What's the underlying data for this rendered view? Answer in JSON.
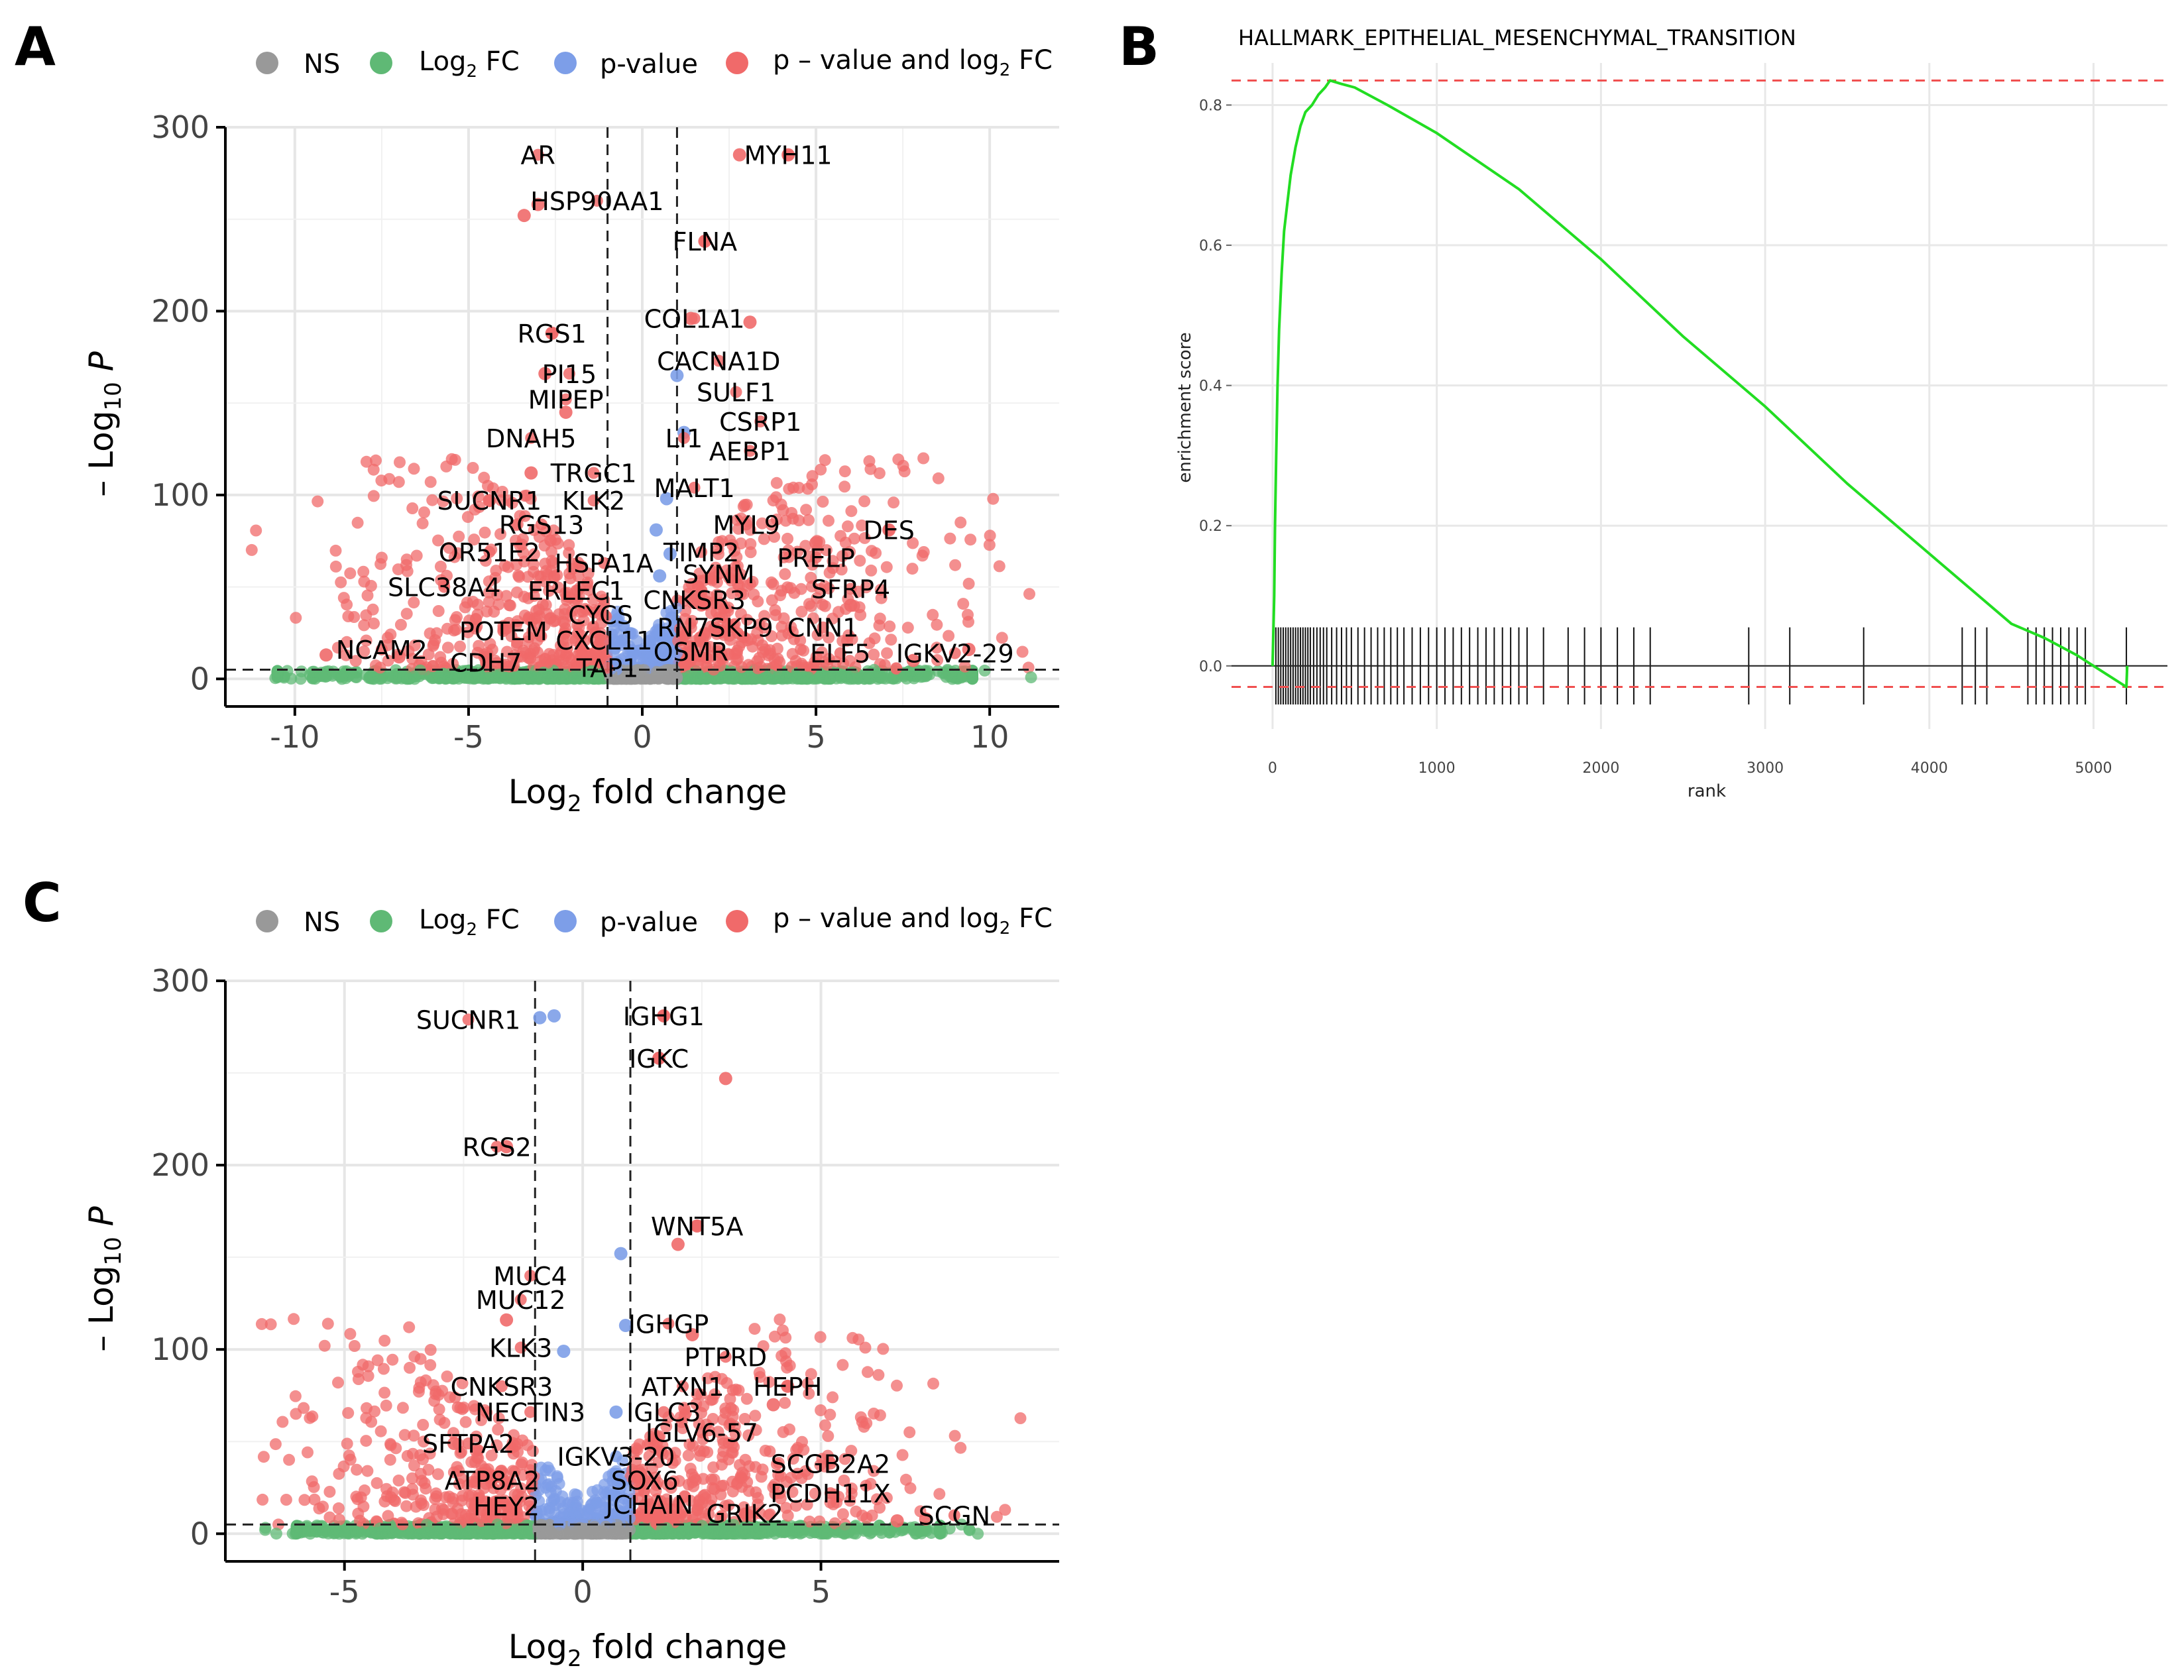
{
  "panels": {
    "a": "A",
    "b": "B",
    "c": "C"
  },
  "legend": {
    "ns": "NS",
    "log2fc_base": "Log",
    "log2fc_sub": "2",
    "log2fc_tail": " FC",
    "pvalue": "p-value",
    "both_base": "p – value and log",
    "both_sub": "2",
    "both_tail": " FC",
    "colors": {
      "ns": "#999999",
      "log2fc": "#5fb975",
      "pvalue": "#7d9ee8",
      "both": "#f06a6a"
    }
  },
  "chart_data": [
    {
      "id": "A",
      "type": "scatter",
      "title": "",
      "xlabel_base": "Log",
      "xlabel_sub": "2",
      "xlabel_tail": " fold change",
      "ylabel_base": "– Log",
      "ylabel_sub": "10",
      "ylabel_tail": " P",
      "xlim": [
        -12,
        12
      ],
      "ylim": [
        -15,
        300
      ],
      "xticks": [
        -10,
        -5,
        0,
        5,
        10
      ],
      "xtick_labels": [
        "-10",
        "-5",
        "0",
        "5",
        "10"
      ],
      "yticks": [
        0,
        100,
        200,
        300
      ],
      "ytick_labels": [
        "0",
        "100",
        "200",
        "300"
      ],
      "fc_cutoff": 1,
      "p_cutoff": 5,
      "labels": [
        {
          "gene": "AR",
          "x": -3.0,
          "y": 285
        },
        {
          "gene": "MYH11",
          "x": 4.2,
          "y": 285
        },
        {
          "gene": "HSP90AA1",
          "x": -1.3,
          "y": 260
        },
        {
          "gene": "FLNA",
          "x": 1.8,
          "y": 238
        },
        {
          "gene": "COL1A1",
          "x": 1.5,
          "y": 196
        },
        {
          "gene": "RGS1",
          "x": -2.6,
          "y": 188
        },
        {
          "gene": "CACNA1D",
          "x": 2.2,
          "y": 173
        },
        {
          "gene": "PI15",
          "x": -2.1,
          "y": 166
        },
        {
          "gene": "SULF1",
          "x": 2.7,
          "y": 156
        },
        {
          "gene": "MIPEP",
          "x": -2.2,
          "y": 152
        },
        {
          "gene": "CSRP1",
          "x": 3.4,
          "y": 140
        },
        {
          "gene": "DNAH5",
          "x": -3.2,
          "y": 131
        },
        {
          "gene": "LI1",
          "x": 1.2,
          "y": 131
        },
        {
          "gene": "AEBP1",
          "x": 3.1,
          "y": 124
        },
        {
          "gene": "TRGC1",
          "x": -1.4,
          "y": 112
        },
        {
          "gene": "MALT1",
          "x": 1.5,
          "y": 104
        },
        {
          "gene": "SUCNR1",
          "x": -4.4,
          "y": 97
        },
        {
          "gene": "KLK2",
          "x": -1.4,
          "y": 97
        },
        {
          "gene": "RGS13",
          "x": -2.9,
          "y": 84
        },
        {
          "gene": "MYL9",
          "x": 3.0,
          "y": 84
        },
        {
          "gene": "DES",
          "x": 7.1,
          "y": 81
        },
        {
          "gene": "OR51E2",
          "x": -4.4,
          "y": 69
        },
        {
          "gene": "TIMP2",
          "x": 1.7,
          "y": 69
        },
        {
          "gene": "PRELP",
          "x": 5.0,
          "y": 66
        },
        {
          "gene": "HSPA1A",
          "x": -1.1,
          "y": 63
        },
        {
          "gene": "SYNM",
          "x": 2.2,
          "y": 57
        },
        {
          "gene": "SLC38A4",
          "x": -5.7,
          "y": 50
        },
        {
          "gene": "SFRP4",
          "x": 6.0,
          "y": 49
        },
        {
          "gene": "ERLEC1",
          "x": -1.9,
          "y": 48
        },
        {
          "gene": "CNKSR3",
          "x": 1.5,
          "y": 43
        },
        {
          "gene": "CYCS",
          "x": -1.2,
          "y": 35
        },
        {
          "gene": "POTEM",
          "x": -4.0,
          "y": 26
        },
        {
          "gene": "RN7SKP9",
          "x": 2.1,
          "y": 28
        },
        {
          "gene": "CNN1",
          "x": 5.2,
          "y": 28
        },
        {
          "gene": "CXCL11",
          "x": -1.1,
          "y": 21
        },
        {
          "gene": "NCAM2",
          "x": -7.5,
          "y": 16
        },
        {
          "gene": "OSMR",
          "x": 1.4,
          "y": 15
        },
        {
          "gene": "ELF5",
          "x": 5.7,
          "y": 14
        },
        {
          "gene": "IGKV2-29",
          "x": 9.0,
          "y": 14
        },
        {
          "gene": "CDH7",
          "x": -4.5,
          "y": 9
        },
        {
          "gene": "TAP1",
          "x": -1.0,
          "y": 6
        }
      ],
      "highlight_points": [
        {
          "x": -3.4,
          "y": 252,
          "c": "both"
        },
        {
          "x": -3.0,
          "y": 258,
          "c": "both"
        },
        {
          "x": 2.8,
          "y": 285,
          "c": "both"
        },
        {
          "x": 4.2,
          "y": 285,
          "c": "both"
        },
        {
          "x": 1.8,
          "y": 238,
          "c": "both"
        },
        {
          "x": 1.4,
          "y": 196,
          "c": "both"
        },
        {
          "x": 3.1,
          "y": 194,
          "c": "both"
        },
        {
          "x": 1.0,
          "y": 165,
          "c": "pvalue"
        },
        {
          "x": 1.2,
          "y": 134,
          "c": "pvalue"
        },
        {
          "x": 0.4,
          "y": 81,
          "c": "pvalue"
        },
        {
          "x": 0.7,
          "y": 98,
          "c": "pvalue"
        },
        {
          "x": 0.8,
          "y": 68,
          "c": "pvalue"
        },
        {
          "x": 0.5,
          "y": 56,
          "c": "pvalue"
        },
        {
          "x": -2.6,
          "y": 188,
          "c": "both"
        },
        {
          "x": -2.8,
          "y": 166,
          "c": "both"
        },
        {
          "x": -2.2,
          "y": 145,
          "c": "both"
        },
        {
          "x": -3.2,
          "y": 112,
          "c": "both"
        },
        {
          "x": -4.4,
          "y": 97,
          "c": "both"
        },
        {
          "x": 7.1,
          "y": 81,
          "c": "both"
        },
        {
          "x": 5.0,
          "y": 74,
          "c": "both"
        },
        {
          "x": 6.0,
          "y": 40,
          "c": "both"
        },
        {
          "x": -9.1,
          "y": 13,
          "c": "both"
        },
        {
          "x": -7.0,
          "y": 12,
          "c": "both"
        },
        {
          "x": 9.4,
          "y": 16,
          "c": "both"
        },
        {
          "x": 7.8,
          "y": 10,
          "c": "both"
        }
      ]
    },
    {
      "id": "C",
      "type": "scatter",
      "title": "",
      "xlabel_base": "Log",
      "xlabel_sub": "2",
      "xlabel_tail": " fold change",
      "ylabel_base": "– Log",
      "ylabel_sub": "10",
      "ylabel_tail": " P",
      "xlim": [
        -7.5,
        10
      ],
      "ylim": [
        -15,
        300
      ],
      "xticks": [
        -5,
        0,
        5
      ],
      "xtick_labels": [
        "-5",
        "0",
        "5"
      ],
      "yticks": [
        0,
        100,
        200,
        300
      ],
      "ytick_labels": [
        "0",
        "100",
        "200",
        "300"
      ],
      "fc_cutoff": 1,
      "p_cutoff": 5,
      "labels": [
        {
          "gene": "SUCNR1",
          "x": -2.4,
          "y": 279
        },
        {
          "gene": "IGHG1",
          "x": 1.7,
          "y": 281
        },
        {
          "gene": "IGKC",
          "x": 1.6,
          "y": 258
        },
        {
          "gene": "RGS2",
          "x": -1.8,
          "y": 210
        },
        {
          "gene": "WNT5A",
          "x": 2.4,
          "y": 167
        },
        {
          "gene": "MUC4",
          "x": -1.1,
          "y": 140
        },
        {
          "gene": "MUC12",
          "x": -1.3,
          "y": 127
        },
        {
          "gene": "IGHGP",
          "x": 1.8,
          "y": 114
        },
        {
          "gene": "KLK3",
          "x": -1.3,
          "y": 101
        },
        {
          "gene": "PTPRD",
          "x": 3.0,
          "y": 96
        },
        {
          "gene": "CNKSR3",
          "x": -1.7,
          "y": 80
        },
        {
          "gene": "ATXN1",
          "x": 2.1,
          "y": 80
        },
        {
          "gene": "HEPH",
          "x": 4.3,
          "y": 80
        },
        {
          "gene": "NECTIN3",
          "x": -1.1,
          "y": 66
        },
        {
          "gene": "IGLC3",
          "x": 1.7,
          "y": 66
        },
        {
          "gene": "IGLV6-57",
          "x": 2.5,
          "y": 55
        },
        {
          "gene": "SFTPA2",
          "x": -2.4,
          "y": 49
        },
        {
          "gene": "IGKV3-20",
          "x": 0.7,
          "y": 42
        },
        {
          "gene": "SCGB2A2",
          "x": 5.2,
          "y": 38
        },
        {
          "gene": "ATP8A2",
          "x": -1.9,
          "y": 29
        },
        {
          "gene": "SOX6",
          "x": 1.3,
          "y": 29
        },
        {
          "gene": "PCDH11X",
          "x": 5.2,
          "y": 22
        },
        {
          "gene": "HEY2",
          "x": -1.6,
          "y": 15
        },
        {
          "gene": "JCHAIN",
          "x": 1.4,
          "y": 16
        },
        {
          "gene": "GRIK2",
          "x": 3.4,
          "y": 11
        },
        {
          "gene": "SCGN",
          "x": 7.8,
          "y": 10
        }
      ],
      "highlight_points": [
        {
          "x": -0.9,
          "y": 280,
          "c": "pvalue"
        },
        {
          "x": -0.6,
          "y": 281,
          "c": "pvalue"
        },
        {
          "x": 1.7,
          "y": 281,
          "c": "both"
        },
        {
          "x": 1.6,
          "y": 258,
          "c": "both"
        },
        {
          "x": 3.0,
          "y": 247,
          "c": "both"
        },
        {
          "x": -1.6,
          "y": 210,
          "c": "both"
        },
        {
          "x": 0.8,
          "y": 152,
          "c": "pvalue"
        },
        {
          "x": 2.0,
          "y": 157,
          "c": "both"
        },
        {
          "x": 2.4,
          "y": 167,
          "c": "both"
        },
        {
          "x": -1.6,
          "y": 116,
          "c": "both"
        },
        {
          "x": 0.9,
          "y": 113,
          "c": "pvalue"
        },
        {
          "x": -0.4,
          "y": 99,
          "c": "pvalue"
        },
        {
          "x": 2.3,
          "y": 108,
          "c": "both"
        },
        {
          "x": 4.3,
          "y": 80,
          "c": "both"
        },
        {
          "x": 4.0,
          "y": 70,
          "c": "both"
        },
        {
          "x": 0.7,
          "y": 66,
          "c": "pvalue"
        },
        {
          "x": 7.2,
          "y": 8,
          "c": "both"
        },
        {
          "x": 6.6,
          "y": 7,
          "c": "both"
        },
        {
          "x": -2.7,
          "y": 49,
          "c": "both"
        }
      ]
    },
    {
      "id": "B",
      "type": "line",
      "title": "HALLMARK_EPITHELIAL_MESENCHYMAL_TRANSITION",
      "xlabel": "rank",
      "ylabel": "enrichment score",
      "xlim": [
        -250,
        5450
      ],
      "ylim": [
        -0.09,
        0.86
      ],
      "xticks": [
        0,
        1000,
        2000,
        3000,
        4000,
        5000
      ],
      "xtick_labels": [
        "0",
        "1000",
        "2000",
        "3000",
        "4000",
        "5000"
      ],
      "yticks": [
        0.0,
        0.2,
        0.4,
        0.6,
        0.8
      ],
      "ytick_labels": [
        "0.0",
        "0.2",
        "0.4",
        "0.6",
        "0.8"
      ],
      "max_es": 0.835,
      "min_es": -0.03,
      "curve": [
        [
          0,
          0.0
        ],
        [
          10,
          0.1
        ],
        [
          15,
          0.2
        ],
        [
          22,
          0.3
        ],
        [
          30,
          0.4
        ],
        [
          40,
          0.48
        ],
        [
          55,
          0.56
        ],
        [
          70,
          0.62
        ],
        [
          90,
          0.66
        ],
        [
          110,
          0.7
        ],
        [
          140,
          0.74
        ],
        [
          170,
          0.77
        ],
        [
          200,
          0.79
        ],
        [
          240,
          0.8
        ],
        [
          280,
          0.815
        ],
        [
          320,
          0.825
        ],
        [
          350,
          0.835
        ],
        [
          420,
          0.83
        ],
        [
          500,
          0.825
        ],
        [
          700,
          0.8
        ],
        [
          1000,
          0.76
        ],
        [
          1500,
          0.68
        ],
        [
          2000,
          0.58
        ],
        [
          2500,
          0.47
        ],
        [
          3000,
          0.37
        ],
        [
          3500,
          0.26
        ],
        [
          4000,
          0.16
        ],
        [
          4500,
          0.06
        ],
        [
          4700,
          0.04
        ],
        [
          4900,
          0.015
        ],
        [
          5000,
          0.0
        ],
        [
          5200,
          -0.03
        ],
        [
          5205,
          0.0
        ]
      ],
      "hits": [
        20,
        35,
        50,
        65,
        80,
        95,
        110,
        125,
        140,
        155,
        170,
        185,
        200,
        215,
        230,
        250,
        270,
        290,
        310,
        330,
        360,
        390,
        420,
        450,
        480,
        520,
        560,
        600,
        640,
        680,
        720,
        760,
        800,
        850,
        900,
        950,
        1000,
        1050,
        1100,
        1150,
        1200,
        1250,
        1300,
        1350,
        1400,
        1450,
        1500,
        1550,
        1650,
        1800,
        1900,
        2000,
        2100,
        2200,
        2300,
        2900,
        3150,
        3600,
        4200,
        4280,
        4350,
        4600,
        4650,
        4700,
        4750,
        4800,
        4850,
        4900,
        4950,
        5200
      ]
    }
  ]
}
